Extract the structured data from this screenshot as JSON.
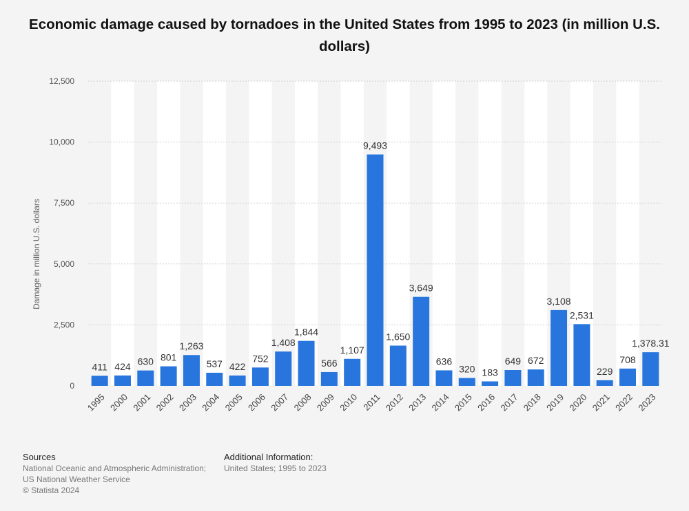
{
  "title": "Economic damage caused by tornadoes in the United States from 1995 to 2023 (in million U.S. dollars)",
  "colors": {
    "bar": "#2876dd",
    "grid": "#cfcfcf",
    "band": "#ffffff",
    "background": "#f4f4f4"
  },
  "chart_data": {
    "type": "bar",
    "title": "Economic damage caused by tornadoes in the United States from 1995 to 2023 (in million U.S. dollars)",
    "xlabel": "",
    "ylabel": "Damage in million U.S. dollars",
    "ylim": [
      0,
      12500
    ],
    "yticks": [
      0,
      2500,
      5000,
      7500,
      10000,
      12500
    ],
    "ytick_labels": [
      "0",
      "2,500",
      "5,000",
      "7,500",
      "10,000",
      "12,500"
    ],
    "grid": true,
    "categories": [
      "1995",
      "2000",
      "2001",
      "2002",
      "2003",
      "2004",
      "2005",
      "2006",
      "2007",
      "2008",
      "2009",
      "2010",
      "2011",
      "2012",
      "2013",
      "2014",
      "2015",
      "2016",
      "2017",
      "2018",
      "2019",
      "2020",
      "2021",
      "2022",
      "2023"
    ],
    "values": [
      411,
      424,
      630,
      801,
      1263,
      537,
      422,
      752,
      1408,
      1844,
      566,
      1107,
      9493,
      1650,
      3649,
      636,
      320,
      183,
      649,
      672,
      3108,
      2531,
      229,
      708,
      1378.31
    ],
    "value_labels": [
      "411",
      "424",
      "630",
      "801",
      "1,263",
      "537",
      "422",
      "752",
      "1,408",
      "1,844",
      "566",
      "1,107",
      "9,493",
      "1,650",
      "3,649",
      "636",
      "320",
      "183",
      "649",
      "672",
      "3,108",
      "2,531",
      "229",
      "708",
      "1,378.31"
    ]
  },
  "footer": {
    "sources_heading": "Sources",
    "sources_line1": "National Oceanic and Atmospheric Administration;",
    "sources_line2": "US National Weather Service",
    "copyright": "© Statista 2024",
    "additional_heading": "Additional Information:",
    "additional_text": "United States; 1995 to 2023"
  }
}
